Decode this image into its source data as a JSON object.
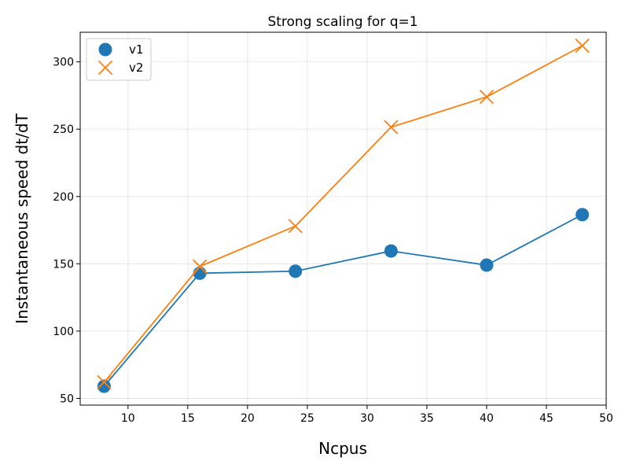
{
  "chart_data": {
    "type": "line",
    "title": "Strong scaling for q=1",
    "xlabel": "Ncpus",
    "ylabel": "Instantaneous speed dt/dT",
    "xlim": [
      6,
      50
    ],
    "ylim": [
      45,
      322
    ],
    "xticks": [
      10,
      15,
      20,
      25,
      30,
      35,
      40,
      45,
      50
    ],
    "yticks": [
      50,
      100,
      150,
      200,
      250,
      300
    ],
    "grid": true,
    "legend_position": "top-left",
    "series": [
      {
        "name": "v1",
        "marker": "circle",
        "color": "#1f77b4",
        "x": [
          8,
          16,
          24,
          32,
          40,
          48
        ],
        "y": [
          59,
          143,
          144.5,
          159.5,
          149,
          186.5
        ]
      },
      {
        "name": "v2",
        "marker": "x",
        "color": "#ff7f0e",
        "x": [
          8,
          16,
          24,
          32,
          40,
          48
        ],
        "y": [
          62,
          148,
          178,
          251.5,
          274,
          312
        ]
      }
    ]
  }
}
